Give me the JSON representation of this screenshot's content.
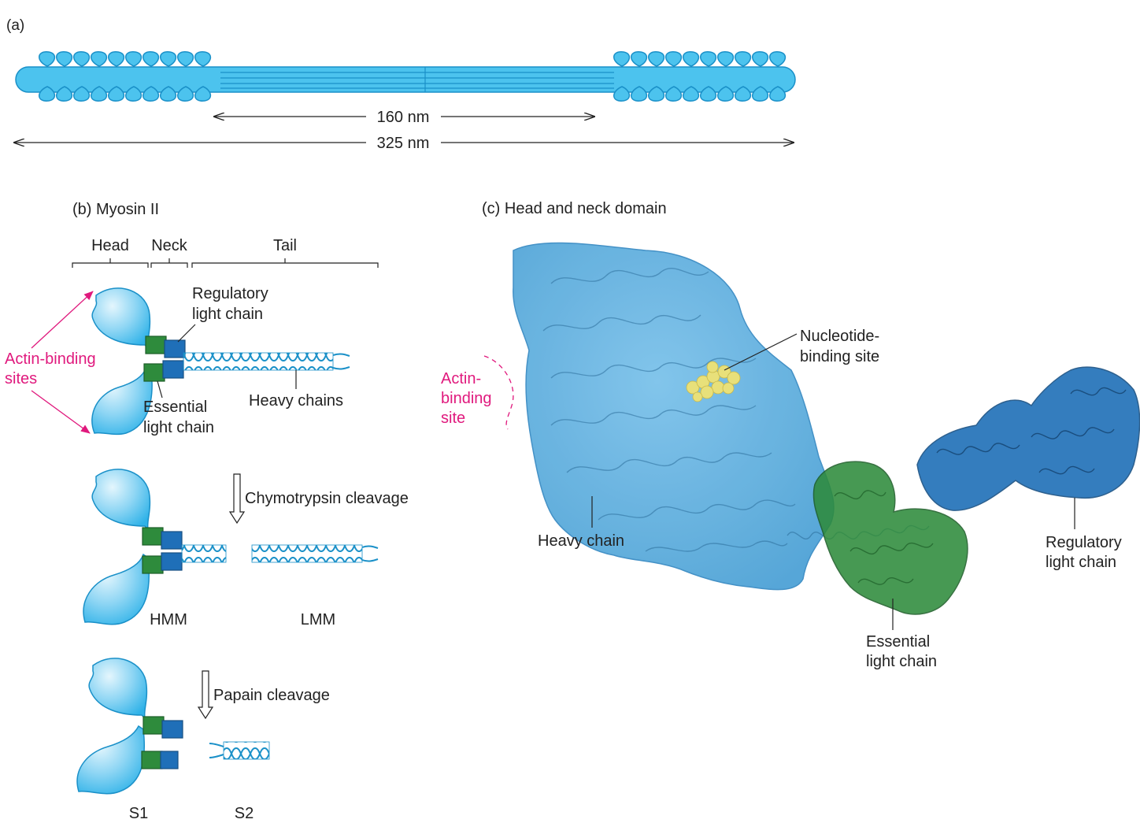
{
  "panel_a": {
    "label": "(a)",
    "dim_inner": "160 nm",
    "dim_outer": "325 nm"
  },
  "panel_b": {
    "title": "(b) Myosin II",
    "region_head": "Head",
    "region_neck": "Neck",
    "region_tail": "Tail",
    "regulatory_light_chain": [
      "Regulatory",
      "light chain"
    ],
    "essential_light_chain": [
      "Essential",
      "light chain"
    ],
    "actin_binding_sites": [
      "Actin-binding",
      "sites"
    ],
    "heavy_chains": "Heavy chains",
    "chymotrypsin_cleavage": "Chymotrypsin cleavage",
    "hmm": "HMM",
    "lmm": "LMM",
    "papain_cleavage": "Papain cleavage",
    "s1": "S1",
    "s2": "S2"
  },
  "panel_c": {
    "title": "(c) Head and neck domain",
    "nucleotide_binding_site": [
      "Nucleotide-",
      "binding site"
    ],
    "actin_binding_site": [
      "Actin-",
      "binding",
      "site"
    ],
    "heavy_chain": "Heavy chain",
    "essential_light_chain": [
      "Essential",
      "light chain"
    ],
    "regulatory_light_chain": [
      "Regulatory",
      "light chain"
    ]
  },
  "colors": {
    "myosin_blue": "#4cc3ee",
    "myosin_blue_dark": "#1a90c8",
    "heavy_chain_surface": "#5bb0e0",
    "essential_light_chain": "#2e8b3c",
    "regulatory_light_chain": "#1f6fb8",
    "nucleotide": "#e8e07a",
    "annotation_pink": "#e0197d",
    "text": "#222222"
  }
}
